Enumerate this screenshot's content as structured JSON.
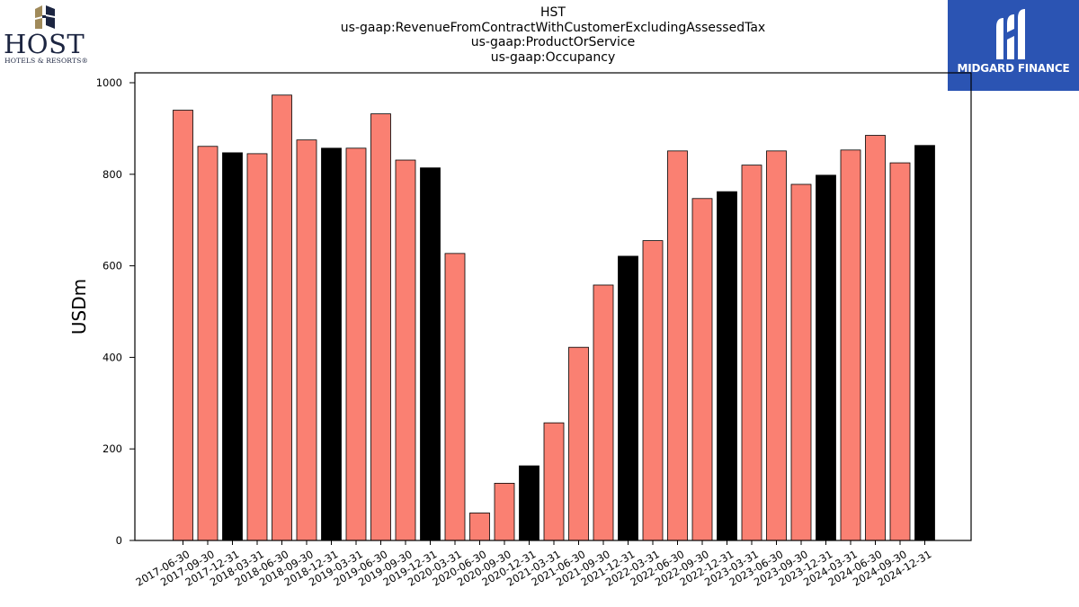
{
  "chart_data": {
    "type": "bar",
    "title_lines": [
      "HST",
      "us-gaap:RevenueFromContractWithCustomerExcludingAssessedTax",
      "us-gaap:ProductOrService",
      "us-gaap:Occupancy"
    ],
    "ylabel": "USDm",
    "xlabel": "",
    "ylim": [
      0,
      1020
    ],
    "yticks": [
      0,
      200,
      400,
      600,
      800,
      1000
    ],
    "grid": false,
    "colors": {
      "quarter": "#fa8072",
      "year_end": "#000000"
    },
    "categories": [
      "2017-06-30",
      "2017-09-30",
      "2017-12-31",
      "2018-03-31",
      "2018-06-30",
      "2018-09-30",
      "2018-12-31",
      "2019-03-31",
      "2019-06-30",
      "2019-09-30",
      "2019-12-31",
      "2020-03-31",
      "2020-06-30",
      "2020-09-30",
      "2020-12-31",
      "2021-03-31",
      "2021-06-30",
      "2021-09-30",
      "2021-12-31",
      "2022-03-31",
      "2022-06-30",
      "2022-09-30",
      "2022-12-31",
      "2023-03-31",
      "2023-06-30",
      "2023-09-30",
      "2023-12-31",
      "2024-03-31",
      "2024-06-30",
      "2024-09-30",
      "2024-12-31"
    ],
    "values": [
      940,
      861,
      847,
      845,
      973,
      875,
      857,
      857,
      932,
      831,
      814,
      627,
      60,
      125,
      163,
      257,
      422,
      558,
      621,
      655,
      851,
      747,
      762,
      820,
      851,
      778,
      798,
      853,
      885,
      825,
      863
    ]
  },
  "logos": {
    "host": {
      "word": "HOST",
      "sub": "HOTELS & RESORTS®"
    },
    "midgard": {
      "text": "MIDGARD FINANCE"
    }
  }
}
